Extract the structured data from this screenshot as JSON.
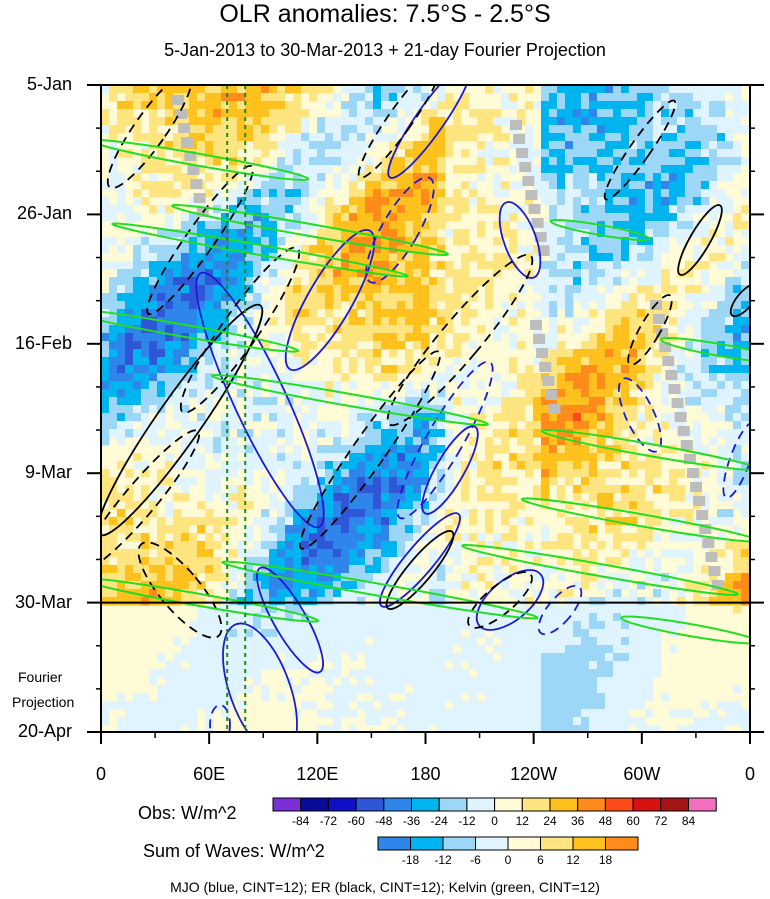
{
  "title": "OLR anomalies: 7.5°S - 2.5°S",
  "subtitle": "5-Jan-2013 to 30-Mar-2013 + 21-day Fourier Projection",
  "side_note": [
    "Fourier",
    "Projection"
  ],
  "caption": "MJO (blue, CINT=12); ER (black, CINT=12); Kelvin (green, CINT=12)",
  "chart_data": {
    "type": "heatmap",
    "x_axis": {
      "tick_labels": [
        "0",
        "60E",
        "120E",
        "180",
        "120W",
        "60W",
        "0"
      ],
      "range_deg_east": [
        0,
        360
      ]
    },
    "y_axis": {
      "tick_labels": [
        "5-Jan",
        "26-Jan",
        "16-Feb",
        "9-Mar",
        "30-Mar",
        "20-Apr"
      ],
      "range": [
        "2013-01-05",
        "2013-04-20"
      ],
      "reversed": true
    },
    "projection_start": "2013-03-30",
    "obs_colorbar": {
      "label": "Obs: W/m^2",
      "levels": [
        -84,
        -72,
        -60,
        -48,
        -36,
        -24,
        -12,
        0,
        12,
        24,
        36,
        48,
        60,
        72,
        84
      ],
      "colors": [
        "#7b2fd6",
        "#0a0a9a",
        "#1010c8",
        "#2e56d6",
        "#2f86ea",
        "#00b4f0",
        "#9cd7f7",
        "#dff4ff",
        "#fffbd6",
        "#ffe57f",
        "#ffc11e",
        "#ff8c1a",
        "#ff4a1a",
        "#d81111",
        "#a51515",
        "#f26fc0"
      ]
    },
    "waves_colorbar": {
      "label": "Sum of Waves: W/m^2",
      "levels": [
        -18,
        -12,
        -6,
        0,
        6,
        12,
        18
      ],
      "colors": [
        "#2f86ea",
        "#00b4f0",
        "#9cd7f7",
        "#dff4ff",
        "#fffbd6",
        "#ffe57f",
        "#ffc11e",
        "#ff8c1a"
      ]
    },
    "series": [
      {
        "name": "MJO",
        "color": "#1a1ad8",
        "cint": 12
      },
      {
        "name": "ER",
        "color": "#000000",
        "cint": 12
      },
      {
        "name": "Kelvin",
        "color": "#22dd22",
        "cint": 12
      }
    ]
  }
}
